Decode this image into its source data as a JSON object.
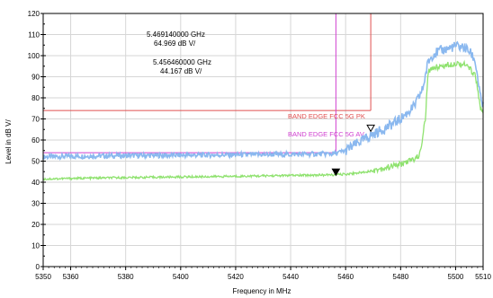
{
  "chart_data": {
    "type": "line",
    "xlabel": "Frequency in MHz",
    "ylabel": "Level in dB  V/",
    "xlim": [
      5350,
      5510
    ],
    "ylim": [
      0,
      120
    ],
    "x_ticks": [
      5350,
      5360,
      5380,
      5400,
      5420,
      5440,
      5460,
      5480,
      5500,
      5510
    ],
    "y_ticks": [
      0,
      10,
      20,
      30,
      40,
      50,
      60,
      70,
      80,
      90,
      100,
      110,
      120
    ],
    "grid": true,
    "series": [
      {
        "color": "#8ab8ef",
        "points": [
          [
            5350,
            52.0
          ],
          [
            5360,
            52.3
          ],
          [
            5380,
            52.6
          ],
          [
            5400,
            52.8
          ],
          [
            5420,
            53.0
          ],
          [
            5440,
            53.2
          ],
          [
            5456,
            53.5
          ],
          [
            5460,
            55.0
          ],
          [
            5465,
            59.0
          ],
          [
            5469,
            62.0
          ],
          [
            5475,
            66.0
          ],
          [
            5480,
            70.0
          ],
          [
            5485,
            76.0
          ],
          [
            5488,
            84.0
          ],
          [
            5490,
            97.0
          ],
          [
            5492,
            101.0
          ],
          [
            5495,
            102.5
          ],
          [
            5500,
            104.5
          ],
          [
            5503,
            104.0
          ],
          [
            5505,
            102.0
          ],
          [
            5507,
            98.0
          ],
          [
            5508,
            90.0
          ],
          [
            5509,
            80.0
          ],
          [
            5510,
            76.0
          ]
        ]
      },
      {
        "color": "#8fe26f",
        "points": [
          [
            5350,
            41.5
          ],
          [
            5360,
            41.8
          ],
          [
            5380,
            42.2
          ],
          [
            5400,
            42.5
          ],
          [
            5420,
            42.8
          ],
          [
            5440,
            43.2
          ],
          [
            5456,
            43.5
          ],
          [
            5460,
            43.8
          ],
          [
            5465,
            44.5
          ],
          [
            5470,
            45.5
          ],
          [
            5475,
            47.0
          ],
          [
            5480,
            48.5
          ],
          [
            5485,
            51.0
          ],
          [
            5487,
            53.0
          ],
          [
            5489,
            70.0
          ],
          [
            5490,
            92.0
          ],
          [
            5492,
            94.5
          ],
          [
            5495,
            95.0
          ],
          [
            5500,
            96.5
          ],
          [
            5503,
            96.0
          ],
          [
            5505,
            94.0
          ],
          [
            5507,
            91.0
          ],
          [
            5508,
            85.0
          ],
          [
            5509,
            75.0
          ],
          [
            5510,
            72.0
          ]
        ]
      }
    ],
    "limit_lines": [
      {
        "label": "BAND EDGE  FCC 5G PK",
        "color": "#e05050",
        "level": 74,
        "x_end": 5469.14,
        "vline": 5469.14
      },
      {
        "label": "BAND EDGE  FCC 5G AV",
        "color": "#d040d0",
        "level": 54,
        "x_end": 5456.46,
        "vline": 5456.46
      }
    ],
    "markers": [
      {
        "x": 5469.14,
        "y": 64.969,
        "freq_text": "5.469140000 GHz",
        "level_text": "64.969 dB   V/",
        "filled": false
      },
      {
        "x": 5456.46,
        "y": 44.167,
        "freq_text": "5.456460000 GHz",
        "level_text": "44.167 dB   V/",
        "filled": true
      }
    ]
  }
}
